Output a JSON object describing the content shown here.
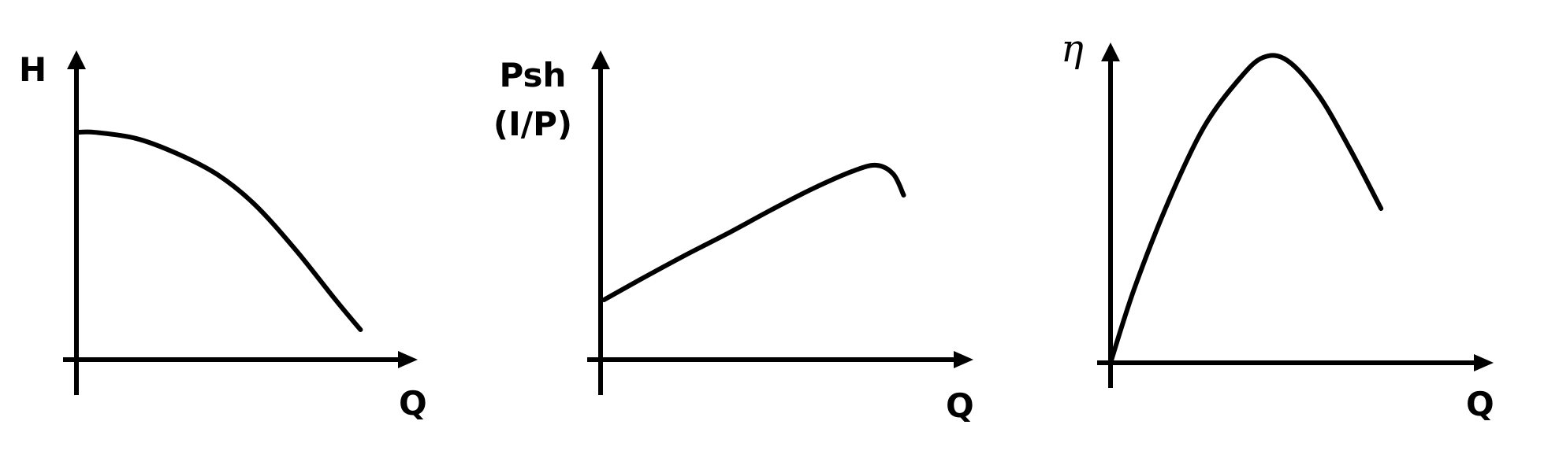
{
  "colors": {
    "stroke": "#000000",
    "background": "#ffffff"
  },
  "chart_data": [
    {
      "type": "line",
      "title": "",
      "ylabel": "H",
      "xlabel": "Q",
      "ticks": "none",
      "grid": false,
      "series": [
        {
          "x": [
            0,
            0.06,
            0.19,
            0.32,
            0.45,
            0.57,
            0.7,
            0.83,
            0.91
          ],
          "values": [
            0.76,
            0.76,
            0.74,
            0.69,
            0.62,
            0.52,
            0.37,
            0.2,
            0.1
          ]
        }
      ]
    },
    {
      "type": "line",
      "title": "",
      "ylabel_lines": [
        "Psh",
        "(I/P)"
      ],
      "xlabel": "Q",
      "ticks": "none",
      "grid": false,
      "series": [
        {
          "x": [
            0.01,
            0.12,
            0.25,
            0.37,
            0.5,
            0.62,
            0.74,
            0.81,
            0.86,
            0.89
          ],
          "values": [
            0.2,
            0.27,
            0.35,
            0.42,
            0.5,
            0.57,
            0.63,
            0.65,
            0.62,
            0.55
          ]
        }
      ]
    },
    {
      "type": "line",
      "title": "",
      "ylabel": "η",
      "xlabel": "Q",
      "ticks": "none",
      "grid": false,
      "series": [
        {
          "x": [
            0,
            0.07,
            0.17,
            0.27,
            0.37,
            0.44,
            0.51,
            0.6,
            0.69,
            0.78
          ],
          "values": [
            0,
            0.24,
            0.52,
            0.75,
            0.9,
            0.97,
            0.96,
            0.85,
            0.68,
            0.49
          ]
        }
      ]
    }
  ]
}
